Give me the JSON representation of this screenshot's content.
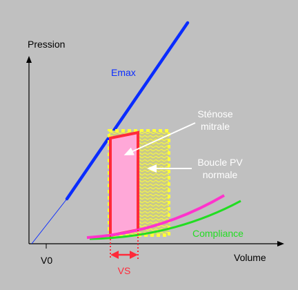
{
  "labels": {
    "y_axis": "Pression",
    "x_axis": "Volume",
    "v0": "V0",
    "emax": "Emax",
    "stenose_line1": "Sténose",
    "stenose_line2": "mitrale",
    "boucle_line1": "Boucle PV",
    "boucle_line2": "normale",
    "compliance": "Compliance",
    "vs": "VS"
  },
  "colors": {
    "background": "#c0c0c0",
    "axes": "#000000",
    "emax": "#0a2cff",
    "stenosis_fill": "#ffa8d8",
    "stenosis_border": "#ff2a3a",
    "normal_loop": "#ffff3a",
    "pink_curve": "#ff33cc",
    "compliance": "#22dd22",
    "vs": "#ff2a3a",
    "arrow_white": "#ffffff"
  }
}
